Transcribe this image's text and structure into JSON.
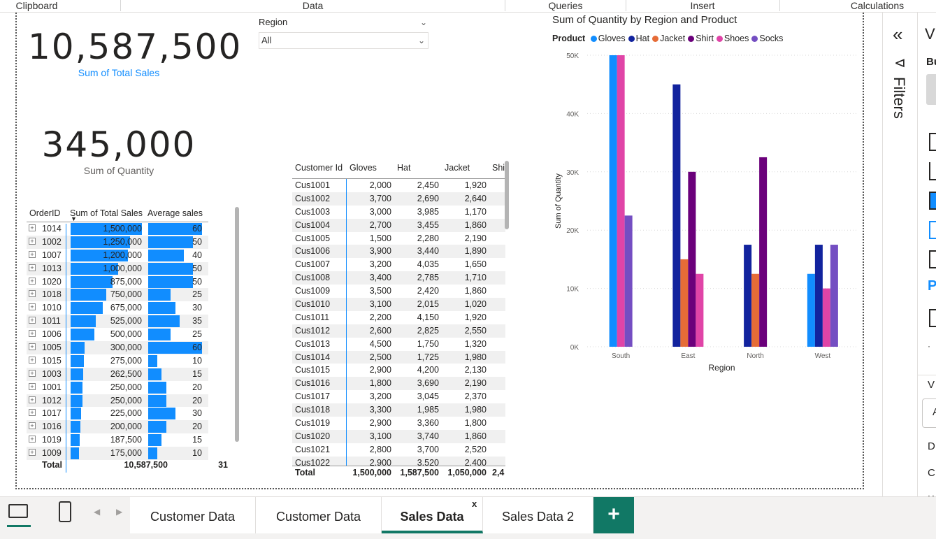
{
  "ribbon": {
    "groups": [
      "Clipboard",
      "Data",
      "Queries",
      "Insert",
      "Calculations"
    ]
  },
  "cards": [
    {
      "value": "10,587,500",
      "label": "Sum of Total Sales",
      "label_color": "#118dff"
    },
    {
      "value": "345,000",
      "label": "Sum of Quantity",
      "label_color": "#605e5c"
    }
  ],
  "slicer": {
    "title": "Region",
    "value": "All"
  },
  "order_matrix": {
    "headers": [
      "OrderID",
      "Sum of Total Sales",
      "Average sales"
    ],
    "rows": [
      {
        "id": "1014",
        "sales": "1,500,000",
        "sales_value": 1500000,
        "avg": "60",
        "avg_value": 60
      },
      {
        "id": "1002",
        "sales": "1,250,000",
        "sales_value": 1250000,
        "avg": "50",
        "avg_value": 50
      },
      {
        "id": "1007",
        "sales": "1,200,000",
        "sales_value": 1200000,
        "avg": "40",
        "avg_value": 40
      },
      {
        "id": "1013",
        "sales": "1,000,000",
        "sales_value": 1000000,
        "avg": "50",
        "avg_value": 50
      },
      {
        "id": "1020",
        "sales": "875,000",
        "sales_value": 875000,
        "avg": "50",
        "avg_value": 50
      },
      {
        "id": "1018",
        "sales": "750,000",
        "sales_value": 750000,
        "avg": "25",
        "avg_value": 25
      },
      {
        "id": "1010",
        "sales": "675,000",
        "sales_value": 675000,
        "avg": "30",
        "avg_value": 30
      },
      {
        "id": "1011",
        "sales": "525,000",
        "sales_value": 525000,
        "avg": "35",
        "avg_value": 35
      },
      {
        "id": "1006",
        "sales": "500,000",
        "sales_value": 500000,
        "avg": "25",
        "avg_value": 25
      },
      {
        "id": "1005",
        "sales": "300,000",
        "sales_value": 300000,
        "avg": "60",
        "avg_value": 60
      },
      {
        "id": "1015",
        "sales": "275,000",
        "sales_value": 275000,
        "avg": "10",
        "avg_value": 10
      },
      {
        "id": "1003",
        "sales": "262,500",
        "sales_value": 262500,
        "avg": "15",
        "avg_value": 15
      },
      {
        "id": "1001",
        "sales": "250,000",
        "sales_value": 250000,
        "avg": "20",
        "avg_value": 20
      },
      {
        "id": "1012",
        "sales": "250,000",
        "sales_value": 250000,
        "avg": "20",
        "avg_value": 20
      },
      {
        "id": "1017",
        "sales": "225,000",
        "sales_value": 225000,
        "avg": "30",
        "avg_value": 30
      },
      {
        "id": "1016",
        "sales": "200,000",
        "sales_value": 200000,
        "avg": "20",
        "avg_value": 20
      },
      {
        "id": "1019",
        "sales": "187,500",
        "sales_value": 187500,
        "avg": "15",
        "avg_value": 15
      },
      {
        "id": "1009",
        "sales": "175,000",
        "sales_value": 175000,
        "avg": "10",
        "avg_value": 10
      }
    ],
    "total": {
      "label": "Total",
      "sales": "10,587,500",
      "avg": "31"
    }
  },
  "customer_table": {
    "headers": [
      "Customer Id",
      "Gloves",
      "Hat",
      "Jacket",
      "Shi"
    ],
    "rows": [
      [
        "Cus1001",
        "2,000",
        "2,450",
        "1,920"
      ],
      [
        "Cus1002",
        "3,700",
        "2,690",
        "2,640"
      ],
      [
        "Cus1003",
        "3,000",
        "3,985",
        "1,170"
      ],
      [
        "Cus1004",
        "2,700",
        "3,455",
        "1,860"
      ],
      [
        "Cus1005",
        "1,500",
        "2,280",
        "2,190"
      ],
      [
        "Cus1006",
        "3,900",
        "3,440",
        "1,890"
      ],
      [
        "Cus1007",
        "3,200",
        "4,035",
        "1,650"
      ],
      [
        "Cus1008",
        "3,400",
        "2,785",
        "1,710"
      ],
      [
        "Cus1009",
        "3,500",
        "2,420",
        "1,860"
      ],
      [
        "Cus1010",
        "3,100",
        "2,015",
        "1,020"
      ],
      [
        "Cus1011",
        "2,200",
        "4,150",
        "1,920"
      ],
      [
        "Cus1012",
        "2,600",
        "2,825",
        "2,550"
      ],
      [
        "Cus1013",
        "4,500",
        "1,750",
        "1,320"
      ],
      [
        "Cus1014",
        "2,500",
        "1,725",
        "1,980"
      ],
      [
        "Cus1015",
        "2,900",
        "4,200",
        "2,130"
      ],
      [
        "Cus1016",
        "1,800",
        "3,690",
        "2,190"
      ],
      [
        "Cus1017",
        "3,200",
        "3,045",
        "2,370"
      ],
      [
        "Cus1018",
        "3,300",
        "1,985",
        "1,980"
      ],
      [
        "Cus1019",
        "2,900",
        "3,360",
        "1,800"
      ],
      [
        "Cus1020",
        "3,100",
        "3,740",
        "1,860"
      ],
      [
        "Cus1021",
        "2,800",
        "3,700",
        "2,520"
      ],
      [
        "Cus1022",
        "2,900",
        "3,520",
        "2,400"
      ]
    ],
    "total": [
      "Total",
      "1,500,000",
      "1,587,500",
      "1,050,000",
      "2,4"
    ]
  },
  "chart_data": {
    "type": "bar",
    "title": "Sum of Quantity by Region and Product",
    "legend_title": "Product",
    "legend_position": "top-left",
    "categories": [
      "South",
      "East",
      "North",
      "West"
    ],
    "xlabel": "Region",
    "ylabel": "Sum of Quantity",
    "ylim": [
      0,
      50000
    ],
    "yticks": [
      "0K",
      "10K",
      "20K",
      "30K",
      "40K",
      "50K"
    ],
    "grid": true,
    "series": [
      {
        "name": "Gloves",
        "color": "#118dff",
        "values": [
          50000,
          0,
          0,
          12500
        ]
      },
      {
        "name": "Hat",
        "color": "#12239e",
        "values": [
          0,
          45000,
          17500,
          17500
        ]
      },
      {
        "name": "Jacket",
        "color": "#e66c37",
        "values": [
          0,
          15000,
          12500,
          0
        ]
      },
      {
        "name": "Shirt",
        "color": "#6b007b",
        "values": [
          0,
          30000,
          32500,
          0
        ]
      },
      {
        "name": "Shoes",
        "color": "#e044a7",
        "values": [
          50000,
          12500,
          0,
          10000
        ]
      },
      {
        "name": "Socks",
        "color": "#744ec2",
        "values": [
          22500,
          0,
          0,
          17500
        ]
      }
    ]
  },
  "filters_pane": {
    "label": "Filters",
    "collapse_glyph": "«",
    "filter_glyph": "⊳"
  },
  "viz_pane": {
    "letters": [
      "V",
      "Bu",
      "P",
      "V",
      "A",
      "D",
      "C",
      "K"
    ]
  },
  "tabs": {
    "items": [
      "Customer Data",
      "Customer Data",
      "Sales Data",
      "Sales Data 2"
    ],
    "active_index": 2,
    "close_glyph": "x",
    "add_glyph": "+"
  }
}
